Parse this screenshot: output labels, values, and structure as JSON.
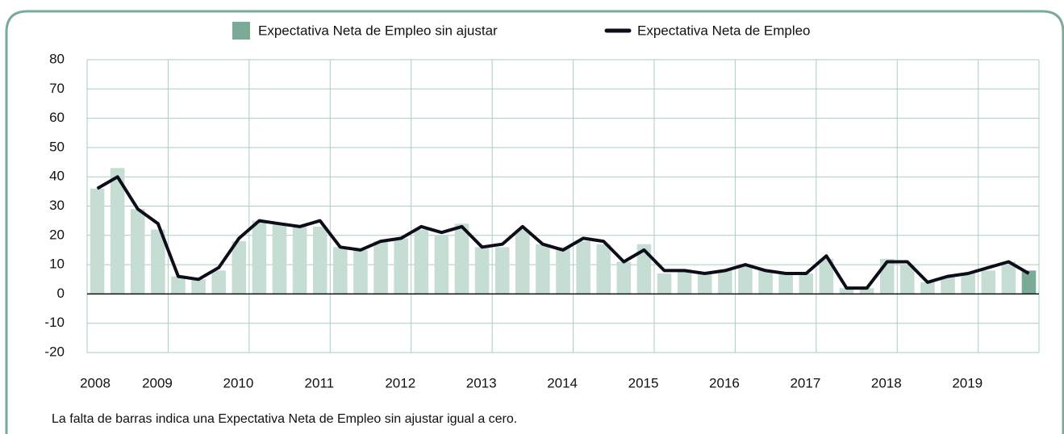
{
  "chart_data": {
    "type": "bar_line",
    "categories": [
      "2008",
      null,
      null,
      null,
      "2009",
      null,
      null,
      null,
      "2010",
      null,
      null,
      null,
      "2011",
      null,
      null,
      null,
      "2012",
      null,
      null,
      null,
      "2013",
      null,
      null,
      null,
      "2014",
      null,
      null,
      null,
      "2015",
      null,
      null,
      null,
      "2016",
      null,
      null,
      null,
      "2017",
      null,
      null,
      null,
      "2018",
      null,
      null,
      null,
      "2019",
      null,
      null
    ],
    "series": [
      {
        "name": "Expectativa Neta de Empleo sin ajustar",
        "type": "bar",
        "color": "#7aab97",
        "colors": [
          "#c5ddd3",
          "#c5ddd3",
          "#c5ddd3",
          "#c5ddd3",
          "#c5ddd3",
          "#c5ddd3",
          "#c5ddd3",
          "#c5ddd3",
          "#c5ddd3",
          "#c5ddd3",
          "#c5ddd3",
          "#c5ddd3",
          "#c5ddd3",
          "#c5ddd3",
          "#c5ddd3",
          "#c5ddd3",
          "#c5ddd3",
          "#c5ddd3",
          "#c5ddd3",
          "#c5ddd3",
          "#c5ddd3",
          "#c5ddd3",
          "#c5ddd3",
          "#c5ddd3",
          "#c5ddd3",
          "#c5ddd3",
          "#c5ddd3",
          "#c5ddd3",
          "#c5ddd3",
          "#c5ddd3",
          "#c5ddd3",
          "#c5ddd3",
          "#c5ddd3",
          "#c5ddd3",
          "#c5ddd3",
          "#c5ddd3",
          "#c5ddd3",
          "#c5ddd3",
          "#c5ddd3",
          "#c5ddd3",
          "#c5ddd3",
          "#c5ddd3",
          "#c5ddd3",
          "#c5ddd3",
          "#c5ddd3",
          "#c5ddd3",
          "#7aab97"
        ],
        "values": [
          36,
          43,
          29,
          22,
          6,
          5,
          8,
          18,
          25,
          24,
          23,
          23,
          16,
          15,
          18,
          19,
          22,
          20,
          24,
          16,
          16,
          22,
          17,
          16,
          18,
          17,
          11,
          17,
          7,
          8,
          7,
          8,
          10,
          8,
          7,
          7,
          12,
          2,
          2,
          12,
          10,
          4,
          6,
          7,
          8,
          11,
          8
        ]
      },
      {
        "name": "Expectativa Neta de Empleo",
        "type": "line",
        "color": "#0d0d1a",
        "values": [
          36,
          40,
          29,
          24,
          6,
          5,
          9,
          19,
          25,
          24,
          23,
          25,
          16,
          15,
          18,
          19,
          23,
          21,
          23,
          16,
          17,
          23,
          17,
          15,
          19,
          18,
          11,
          15,
          8,
          8,
          7,
          8,
          10,
          8,
          7,
          7,
          13,
          2,
          2,
          11,
          11,
          4,
          6,
          7,
          9,
          11,
          7
        ]
      }
    ],
    "ylim": [
      -20,
      80
    ],
    "yticks": [
      -20,
      -10,
      0,
      10,
      20,
      30,
      40,
      50,
      60,
      70,
      80
    ],
    "grid": true,
    "footnote": "La falta de barras indica una Expectativa Neta de Empleo sin ajustar igual a cero."
  }
}
